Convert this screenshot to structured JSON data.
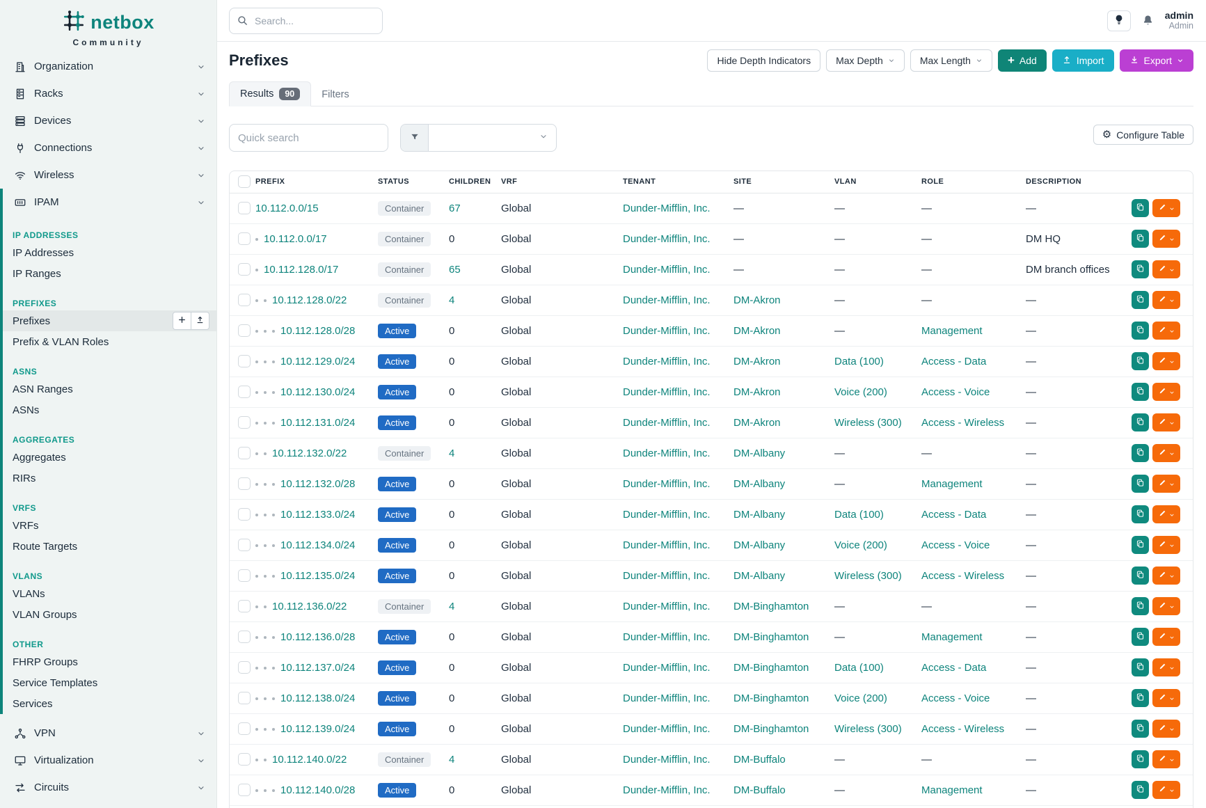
{
  "brand": {
    "name": "netbox",
    "subtitle": "Community"
  },
  "colors": {
    "brand_teal": "#0e847c",
    "sidebar_bg": "#eff4f3",
    "section_heading": "#10998b",
    "active_status_badge": "#206bc4",
    "container_badge_bg": "#eef1f4",
    "add_button": "#0f8577",
    "import_button": "#1aaec7",
    "export_button": "#bb3fd3",
    "edit_button": "#f66a0a",
    "copy_button": "#0f8a7e"
  },
  "sidebar": {
    "menu_top": [
      {
        "label": "Organization",
        "icon": "building"
      },
      {
        "label": "Racks",
        "icon": "rack"
      },
      {
        "label": "Devices",
        "icon": "server"
      },
      {
        "label": "Connections",
        "icon": "plug"
      },
      {
        "label": "Wireless",
        "icon": "wifi"
      }
    ],
    "ipam": {
      "label": "IPAM",
      "icon": "counter"
    },
    "sections": [
      {
        "heading": "IP ADDRESSES",
        "items": [
          {
            "label": "IP Addresses"
          },
          {
            "label": "IP Ranges"
          }
        ]
      },
      {
        "heading": "PREFIXES",
        "items": [
          {
            "label": "Prefixes",
            "active": true,
            "buttons": [
              "add",
              "import"
            ]
          },
          {
            "label": "Prefix & VLAN Roles"
          }
        ]
      },
      {
        "heading": "ASNS",
        "items": [
          {
            "label": "ASN Ranges"
          },
          {
            "label": "ASNs"
          }
        ]
      },
      {
        "heading": "AGGREGATES",
        "items": [
          {
            "label": "Aggregates"
          },
          {
            "label": "RIRs"
          }
        ]
      },
      {
        "heading": "VRFS",
        "items": [
          {
            "label": "VRFs"
          },
          {
            "label": "Route Targets"
          }
        ]
      },
      {
        "heading": "VLANS",
        "items": [
          {
            "label": "VLANs"
          },
          {
            "label": "VLAN Groups"
          }
        ]
      },
      {
        "heading": "OTHER",
        "items": [
          {
            "label": "FHRP Groups"
          },
          {
            "label": "Service Templates"
          },
          {
            "label": "Services"
          }
        ]
      }
    ],
    "menu_bottom": [
      {
        "label": "VPN",
        "icon": "vpn"
      },
      {
        "label": "Virtualization",
        "icon": "monitor"
      },
      {
        "label": "Circuits",
        "icon": "transit"
      }
    ]
  },
  "topbar": {
    "search_placeholder": "Search...",
    "user": {
      "name": "admin",
      "role": "Admin"
    }
  },
  "page": {
    "title": "Prefixes",
    "tabs": [
      {
        "label": "Results",
        "count": "90",
        "active": true
      },
      {
        "label": "Filters",
        "active": false
      }
    ],
    "actions": {
      "hide_depth": "Hide Depth Indicators",
      "max_depth": "Max Depth",
      "max_length": "Max Length",
      "add": "Add",
      "import": "Import",
      "export": "Export"
    }
  },
  "toolbar": {
    "quick_search_placeholder": "Quick search",
    "configure_label": "Configure Table"
  },
  "table": {
    "columns": [
      "PREFIX",
      "STATUS",
      "CHILDREN",
      "VRF",
      "TENANT",
      "SITE",
      "VLAN",
      "ROLE",
      "DESCRIPTION"
    ],
    "rows": [
      {
        "depth": 0,
        "prefix": "10.112.0.0/15",
        "status": "Container",
        "children": "67",
        "vrf": "Global",
        "tenant": "Dunder-Mifflin, Inc.",
        "site": "—",
        "vlan": "—",
        "role": "—",
        "description": "—"
      },
      {
        "depth": 1,
        "prefix": "10.112.0.0/17",
        "status": "Container",
        "children": "0",
        "vrf": "Global",
        "tenant": "Dunder-Mifflin, Inc.",
        "site": "—",
        "vlan": "—",
        "role": "—",
        "description": "DM HQ"
      },
      {
        "depth": 1,
        "prefix": "10.112.128.0/17",
        "status": "Container",
        "children": "65",
        "vrf": "Global",
        "tenant": "Dunder-Mifflin, Inc.",
        "site": "—",
        "vlan": "—",
        "role": "—",
        "description": "DM branch offices"
      },
      {
        "depth": 2,
        "prefix": "10.112.128.0/22",
        "status": "Container",
        "children": "4",
        "vrf": "Global",
        "tenant": "Dunder-Mifflin, Inc.",
        "site": "DM-Akron",
        "vlan": "—",
        "role": "—",
        "description": "—"
      },
      {
        "depth": 3,
        "prefix": "10.112.128.0/28",
        "status": "Active",
        "children": "0",
        "vrf": "Global",
        "tenant": "Dunder-Mifflin, Inc.",
        "site": "DM-Akron",
        "vlan": "—",
        "role": "Management",
        "description": "—"
      },
      {
        "depth": 3,
        "prefix": "10.112.129.0/24",
        "status": "Active",
        "children": "0",
        "vrf": "Global",
        "tenant": "Dunder-Mifflin, Inc.",
        "site": "DM-Akron",
        "vlan": "Data (100)",
        "role": "Access - Data",
        "description": "—"
      },
      {
        "depth": 3,
        "prefix": "10.112.130.0/24",
        "status": "Active",
        "children": "0",
        "vrf": "Global",
        "tenant": "Dunder-Mifflin, Inc.",
        "site": "DM-Akron",
        "vlan": "Voice (200)",
        "role": "Access - Voice",
        "description": "—"
      },
      {
        "depth": 3,
        "prefix": "10.112.131.0/24",
        "status": "Active",
        "children": "0",
        "vrf": "Global",
        "tenant": "Dunder-Mifflin, Inc.",
        "site": "DM-Akron",
        "vlan": "Wireless (300)",
        "role": "Access - Wireless",
        "description": "—"
      },
      {
        "depth": 2,
        "prefix": "10.112.132.0/22",
        "status": "Container",
        "children": "4",
        "vrf": "Global",
        "tenant": "Dunder-Mifflin, Inc.",
        "site": "DM-Albany",
        "vlan": "—",
        "role": "—",
        "description": "—"
      },
      {
        "depth": 3,
        "prefix": "10.112.132.0/28",
        "status": "Active",
        "children": "0",
        "vrf": "Global",
        "tenant": "Dunder-Mifflin, Inc.",
        "site": "DM-Albany",
        "vlan": "—",
        "role": "Management",
        "description": "—"
      },
      {
        "depth": 3,
        "prefix": "10.112.133.0/24",
        "status": "Active",
        "children": "0",
        "vrf": "Global",
        "tenant": "Dunder-Mifflin, Inc.",
        "site": "DM-Albany",
        "vlan": "Data (100)",
        "role": "Access - Data",
        "description": "—"
      },
      {
        "depth": 3,
        "prefix": "10.112.134.0/24",
        "status": "Active",
        "children": "0",
        "vrf": "Global",
        "tenant": "Dunder-Mifflin, Inc.",
        "site": "DM-Albany",
        "vlan": "Voice (200)",
        "role": "Access - Voice",
        "description": "—"
      },
      {
        "depth": 3,
        "prefix": "10.112.135.0/24",
        "status": "Active",
        "children": "0",
        "vrf": "Global",
        "tenant": "Dunder-Mifflin, Inc.",
        "site": "DM-Albany",
        "vlan": "Wireless (300)",
        "role": "Access - Wireless",
        "description": "—"
      },
      {
        "depth": 2,
        "prefix": "10.112.136.0/22",
        "status": "Container",
        "children": "4",
        "vrf": "Global",
        "tenant": "Dunder-Mifflin, Inc.",
        "site": "DM-Binghamton",
        "vlan": "—",
        "role": "—",
        "description": "—"
      },
      {
        "depth": 3,
        "prefix": "10.112.136.0/28",
        "status": "Active",
        "children": "0",
        "vrf": "Global",
        "tenant": "Dunder-Mifflin, Inc.",
        "site": "DM-Binghamton",
        "vlan": "—",
        "role": "Management",
        "description": "—"
      },
      {
        "depth": 3,
        "prefix": "10.112.137.0/24",
        "status": "Active",
        "children": "0",
        "vrf": "Global",
        "tenant": "Dunder-Mifflin, Inc.",
        "site": "DM-Binghamton",
        "vlan": "Data (100)",
        "role": "Access - Data",
        "description": "—"
      },
      {
        "depth": 3,
        "prefix": "10.112.138.0/24",
        "status": "Active",
        "children": "0",
        "vrf": "Global",
        "tenant": "Dunder-Mifflin, Inc.",
        "site": "DM-Binghamton",
        "vlan": "Voice (200)",
        "role": "Access - Voice",
        "description": "—"
      },
      {
        "depth": 3,
        "prefix": "10.112.139.0/24",
        "status": "Active",
        "children": "0",
        "vrf": "Global",
        "tenant": "Dunder-Mifflin, Inc.",
        "site": "DM-Binghamton",
        "vlan": "Wireless (300)",
        "role": "Access - Wireless",
        "description": "—"
      },
      {
        "depth": 2,
        "prefix": "10.112.140.0/22",
        "status": "Container",
        "children": "4",
        "vrf": "Global",
        "tenant": "Dunder-Mifflin, Inc.",
        "site": "DM-Buffalo",
        "vlan": "—",
        "role": "—",
        "description": "—"
      },
      {
        "depth": 3,
        "prefix": "10.112.140.0/28",
        "status": "Active",
        "children": "0",
        "vrf": "Global",
        "tenant": "Dunder-Mifflin, Inc.",
        "site": "DM-Buffalo",
        "vlan": "—",
        "role": "Management",
        "description": "—"
      }
    ]
  }
}
